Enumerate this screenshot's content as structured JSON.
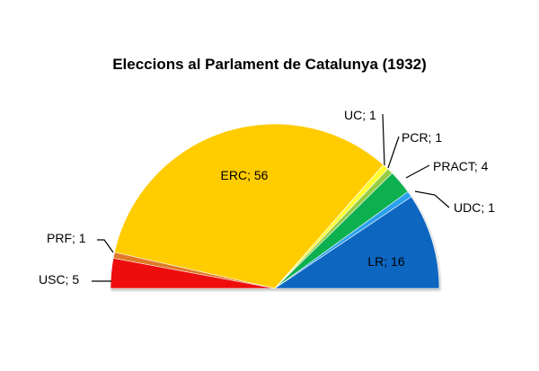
{
  "chart_data": {
    "type": "pie",
    "subtype": "parliament-semicircle",
    "title": "Eleccions al Parlament de Catalunya (1932)",
    "series": [
      {
        "name": "USC",
        "value": 5,
        "label": "USC; 5",
        "color": "#ee1111"
      },
      {
        "name": "PRF",
        "value": 1,
        "label": "PRF; 1",
        "color": "#e07a2a"
      },
      {
        "name": "ERC",
        "value": 56,
        "label": "ERC; 56",
        "color": "#ffcc00"
      },
      {
        "name": "UC",
        "value": 1,
        "label": "UC; 1",
        "color": "#ffff33"
      },
      {
        "name": "PCR",
        "value": 1,
        "label": "PCR; 1",
        "color": "#99cc44"
      },
      {
        "name": "PRACT",
        "value": 4,
        "label": "PRACT; 4",
        "color": "#11b050"
      },
      {
        "name": "UDC",
        "value": 1,
        "label": "UDC; 1",
        "color": "#2aa0ee"
      },
      {
        "name": "LR",
        "value": 16,
        "label": "LR; 16",
        "color": "#0a66c0"
      }
    ],
    "legend": "none"
  }
}
